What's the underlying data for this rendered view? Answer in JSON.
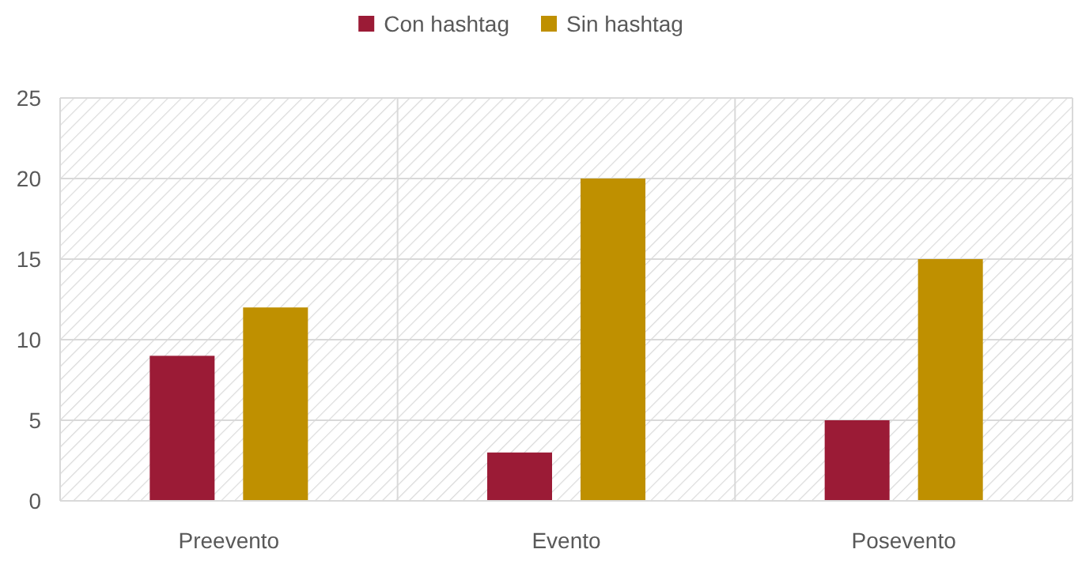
{
  "chart_data": {
    "type": "bar",
    "categories": [
      "Preevento",
      "Evento",
      "Posevento"
    ],
    "series": [
      {
        "name": "Con hashtag",
        "color": "#9b1b36",
        "values": [
          9,
          3,
          5
        ]
      },
      {
        "name": "Sin hashtag",
        "color": "#bf9000",
        "values": [
          12,
          20,
          15
        ]
      }
    ],
    "ylim": [
      0,
      25
    ],
    "yticks": [
      0,
      5,
      10,
      15,
      20,
      25
    ],
    "grid": true,
    "legend": "top"
  }
}
